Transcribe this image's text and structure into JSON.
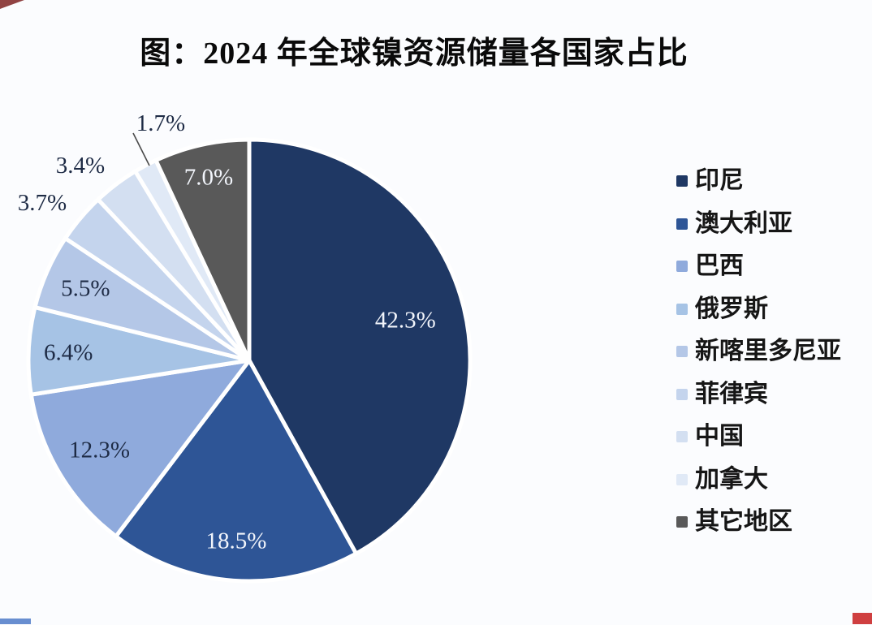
{
  "chart_data": {
    "type": "pie",
    "title": "图：2024 年全球镍资源储量各国家占比",
    "legend_position": "right",
    "start_angle_deg": 0,
    "direction": "clockwise",
    "background_color": "#FBFCFE",
    "slices": [
      {
        "name": "印尼",
        "value": 42.3,
        "display": "42.3%",
        "color": "#1F3864",
        "label_color": "#F2F5FB"
      },
      {
        "name": "澳大利亚",
        "value": 18.5,
        "display": "18.5%",
        "color": "#2E5596",
        "label_color": "#F2F5FB"
      },
      {
        "name": "巴西",
        "value": 12.3,
        "display": "12.3%",
        "color": "#8FAADC",
        "label_color": "#1E2B45"
      },
      {
        "name": "俄罗斯",
        "value": 6.4,
        "display": "6.4%",
        "color": "#A6C3E5",
        "label_color": "#1E2B45"
      },
      {
        "name": "新喀里多尼亚",
        "value": 5.5,
        "display": "5.5%",
        "color": "#B4C7E7",
        "label_color": "#1E2B45"
      },
      {
        "name": "菲律宾",
        "value": 3.7,
        "display": "3.7%",
        "color": "#C4D4ED",
        "label_color": "#1E2B45"
      },
      {
        "name": "中国",
        "value": 3.4,
        "display": "3.4%",
        "color": "#D3DFF1",
        "label_color": "#1E2B45"
      },
      {
        "name": "加拿大",
        "value": 1.7,
        "display": "1.7%",
        "color": "#E0E9F6",
        "label_color": "#1E2B45"
      },
      {
        "name": "其它地区",
        "value": 7.0,
        "display": "7.0%",
        "color": "#595959",
        "label_color": "#F2F5FB"
      }
    ]
  },
  "decorations": {
    "top_left_mark_color": "#7E2222",
    "bottom_left_strip_color": "#4472C4",
    "bottom_right_mark_color": "#C00000"
  }
}
